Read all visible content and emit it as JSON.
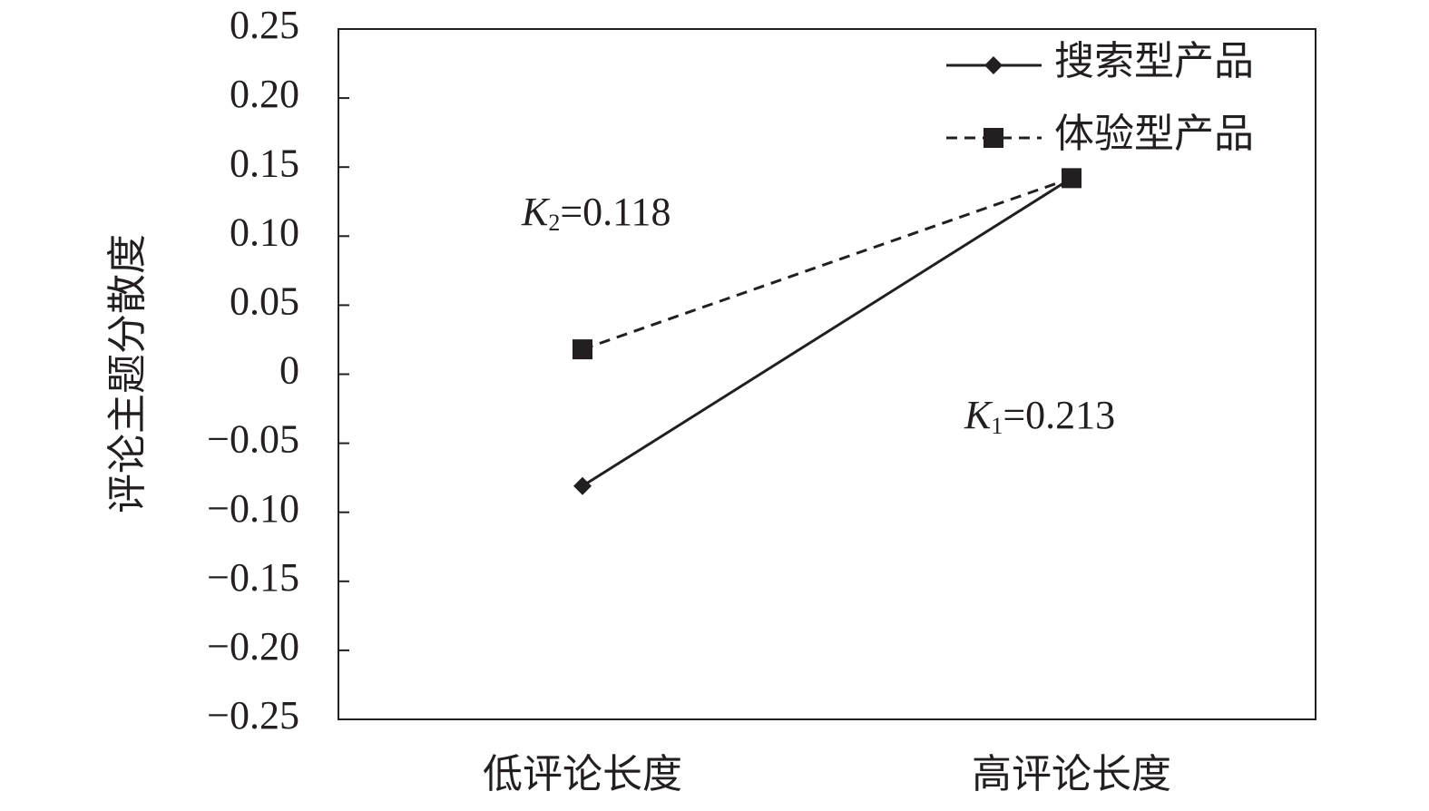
{
  "chart_data": {
    "type": "line",
    "y_label": "评论主题分散度",
    "categories": [
      "低评论长度",
      "高评论长度"
    ],
    "series": [
      {
        "name": "搜索型产品",
        "color": "#231f20",
        "values": [
          -0.081,
          0.142
        ]
      },
      {
        "name": "体验型产品",
        "color": "#231f20",
        "values": [
          0.018,
          0.142
        ]
      }
    ],
    "ylim": [
      -0.25,
      0.25
    ],
    "yticks": [
      {
        "value": -0.25,
        "label": "−0.25"
      },
      {
        "value": -0.2,
        "label": "−0.20"
      },
      {
        "value": -0.15,
        "label": "−0.15"
      },
      {
        "value": -0.1,
        "label": "−0.10"
      },
      {
        "value": -0.05,
        "label": "−0.05"
      },
      0,
      0.05,
      {
        "value": 0.1,
        "label": "0.10"
      },
      0.15,
      {
        "value": 0.2,
        "label": "0.20"
      },
      0.25
    ],
    "annotations": [
      {
        "symbol": "K",
        "subscript": "2",
        "text": "=0.118"
      },
      {
        "symbol": "K",
        "subscript": "1",
        "text": "=0.213"
      }
    ],
    "legend": "top-right"
  }
}
